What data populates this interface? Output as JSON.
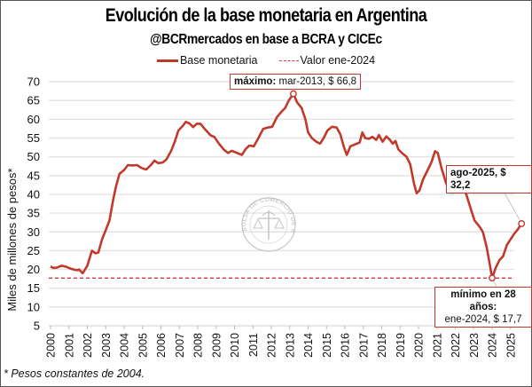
{
  "chart_data": {
    "type": "line",
    "title": "Evolución de la base monetaria en Argentina",
    "subtitle": "@BCRmercados en base a BCRA y CICEc",
    "xlabel": "",
    "ylabel": "Miles de millones de pesos*",
    "ylim": [
      5,
      70
    ],
    "yticks": [
      5,
      10,
      15,
      20,
      25,
      30,
      35,
      40,
      45,
      50,
      55,
      60,
      65,
      70
    ],
    "xlim": [
      2000,
      2025.8
    ],
    "xticks": [
      "2000",
      "2001",
      "2002",
      "2003",
      "2004",
      "2005",
      "2006",
      "2007",
      "2008",
      "2009",
      "2010",
      "2011",
      "2012",
      "2013",
      "2014",
      "2015",
      "2016",
      "2017",
      "2018",
      "2019",
      "2020",
      "2021",
      "2022",
      "2023",
      "2024",
      "2025"
    ],
    "grid": true,
    "legend_position": "top-center",
    "series": [
      {
        "name": "Base monetaria",
        "color": "#c0392b",
        "style": "solid",
        "x": [
          2000.0,
          2000.15,
          2000.35,
          2000.6,
          2000.85,
          2001.1,
          2001.4,
          2001.55,
          2001.75,
          2002.0,
          2002.25,
          2002.45,
          2002.6,
          2002.8,
          2003.0,
          2003.2,
          2003.4,
          2003.55,
          2003.75,
          2004.0,
          2004.2,
          2004.45,
          2004.7,
          2004.95,
          2005.2,
          2005.45,
          2005.65,
          2005.85,
          2006.1,
          2006.3,
          2006.55,
          2006.75,
          2006.95,
          2007.2,
          2007.35,
          2007.55,
          2007.75,
          2007.95,
          2008.15,
          2008.4,
          2008.7,
          2008.9,
          2009.15,
          2009.4,
          2009.65,
          2009.85,
          2010.1,
          2010.4,
          2010.6,
          2010.8,
          2011.05,
          2011.3,
          2011.55,
          2011.8,
          2012.05,
          2012.3,
          2012.55,
          2012.75,
          2012.95,
          2013.2,
          2013.4,
          2013.65,
          2013.85,
          2014.0,
          2014.2,
          2014.45,
          2014.65,
          2014.85,
          2015.05,
          2015.3,
          2015.55,
          2015.75,
          2015.95,
          2016.1,
          2016.3,
          2016.55,
          2016.8,
          2016.95,
          2017.1,
          2017.3,
          2017.5,
          2017.7,
          2017.85,
          2018.05,
          2018.25,
          2018.45,
          2018.6,
          2018.75,
          2018.9,
          2019.1,
          2019.35,
          2019.55,
          2019.75,
          2019.9,
          2020.05,
          2020.25,
          2020.5,
          2020.7,
          2020.9,
          2021.05,
          2021.25,
          2021.5,
          2021.75,
          2021.95,
          2022.15,
          2022.4,
          2022.6,
          2022.85,
          2023.05,
          2023.3,
          2023.5,
          2023.7,
          2023.85,
          2024.0,
          2024.2,
          2024.4,
          2024.6,
          2024.8,
          2025.0,
          2025.2,
          2025.4,
          2025.6
        ],
        "values": [
          20.8,
          20.4,
          20.5,
          21.0,
          20.7,
          20.2,
          19.8,
          20.0,
          19.0,
          21.0,
          25.0,
          24.3,
          24.5,
          28.0,
          30.5,
          33.0,
          38.5,
          42.0,
          45.5,
          46.5,
          47.8,
          47.7,
          47.8,
          47.0,
          46.6,
          47.8,
          49.0,
          48.3,
          48.5,
          49.3,
          51.5,
          54.0,
          57.0,
          58.3,
          59.3,
          58.9,
          57.9,
          58.8,
          58.8,
          57.3,
          55.7,
          55.3,
          53.5,
          52.0,
          51.0,
          51.6,
          51.1,
          50.5,
          52.0,
          53.0,
          52.8,
          55.0,
          57.4,
          57.8,
          58.0,
          60.5,
          62.0,
          63.0,
          65.0,
          66.8,
          64.5,
          63.0,
          60.0,
          56.5,
          55.0,
          54.0,
          53.5,
          55.0,
          57.0,
          58.0,
          57.8,
          56.0,
          52.5,
          50.5,
          52.8,
          53.3,
          53.8,
          56.5,
          55.0,
          54.8,
          55.3,
          54.5,
          55.8,
          54.0,
          55.4,
          54.5,
          53.5,
          54.2,
          52.0,
          51.0,
          50.0,
          48.0,
          43.0,
          40.3,
          41.0,
          44.0,
          46.5,
          48.5,
          51.5,
          51.0,
          47.0,
          43.0,
          40.5,
          40.5,
          42.0,
          42.0,
          40.0,
          36.0,
          33.0,
          31.5,
          30.0,
          26.0,
          22.0,
          17.7,
          20.5,
          22.5,
          23.5,
          26.5,
          28.0,
          29.5,
          30.7,
          32.2
        ]
      },
      {
        "name": "Valor ene-2024",
        "color": "#d43a3a",
        "style": "dashed",
        "constant": 17.7
      }
    ],
    "annotations": [
      {
        "label_bold": "máximo:",
        "label": "mar-2013, $ 66,8",
        "x": 2013.2,
        "y": 66.8
      },
      {
        "label_bold": "mínimo en 28 años:",
        "label": "ene-2024, $ 17,7",
        "x": 2024.0,
        "y": 17.7
      },
      {
        "label_bold": "ago-2025, $ 32,2",
        "label": "",
        "x": 2025.6,
        "y": 32.2
      }
    ]
  },
  "header": {
    "title": "Evolución de la base monetaria en Argentina",
    "subtitle": "@BCRmercados en base a BCRA y CICEc"
  },
  "legend": {
    "items": [
      "Base monetaria",
      "Valor ene-2024"
    ]
  },
  "axis": {
    "ylabel": "Miles de millones de pesos*"
  },
  "watermark": {
    "text": "BOLSA DE COMERCIO DE ROSARIO"
  },
  "footnote": "* Pesos constantes de 2004."
}
